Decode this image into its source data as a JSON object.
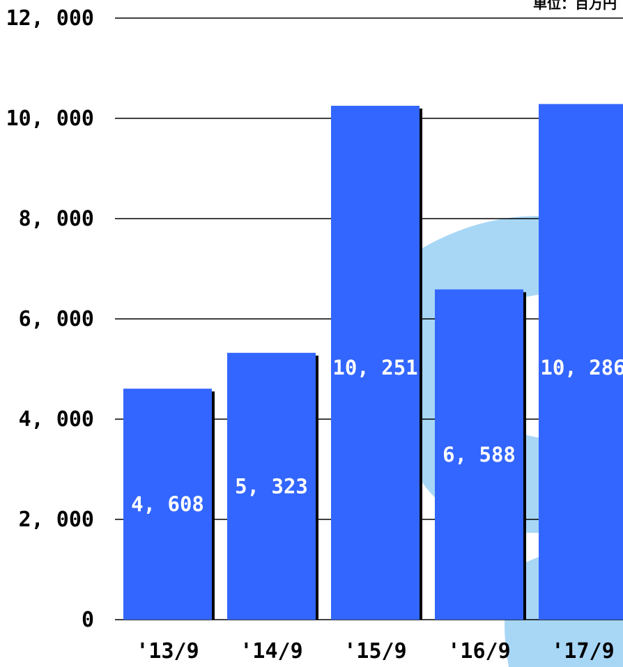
{
  "chart_data": {
    "type": "bar",
    "unit_label": "単位：百万円",
    "categories": [
      "'13/9",
      "'14/9",
      "'15/9",
      "'16/9",
      "'17/9"
    ],
    "values": [
      4608,
      5323,
      10251,
      6588,
      10286
    ],
    "value_labels": [
      "4, 608",
      "5, 323",
      "10, 251",
      "6, 588",
      "10, 286"
    ],
    "y_ticks": [
      0,
      2000,
      4000,
      6000,
      8000,
      10000,
      12000
    ],
    "y_tick_labels": [
      "0",
      "2, 000",
      "4, 000",
      "6, 000",
      "8, 000",
      "10, 000",
      "12, 000"
    ],
    "ylim": [
      0,
      12000
    ],
    "grid": true,
    "colors": {
      "bar": "#3366ff",
      "shadow": "#000000",
      "watermark": "#9fd3f5"
    }
  }
}
